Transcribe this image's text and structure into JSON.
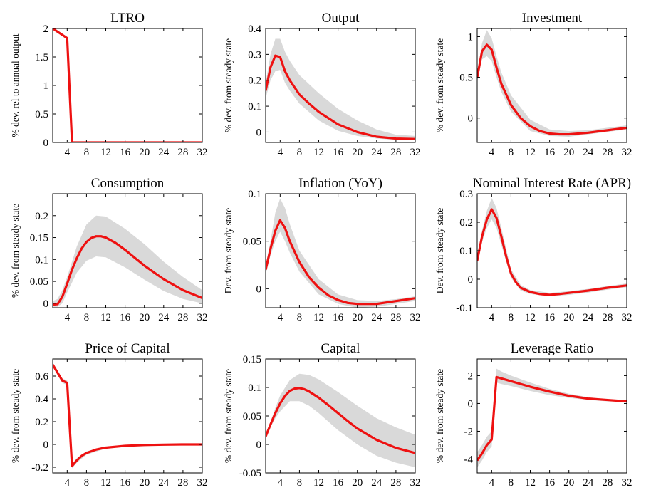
{
  "colors": {
    "line": "#ee1111",
    "band": "#d9d9d9",
    "axes": "#000000",
    "background": "#ffffff"
  },
  "chart_data": [
    {
      "type": "line",
      "title": "LTRO",
      "ylabel": "% dev. rel to annual output",
      "xlim": [
        1,
        32
      ],
      "ylim": [
        0,
        2
      ],
      "xticks": [
        4,
        8,
        12,
        16,
        20,
        24,
        28,
        32
      ],
      "yticks": [
        0,
        0.5,
        1,
        1.5,
        2
      ],
      "ytick_labels": [
        "0",
        "0.5",
        "1",
        "1.5",
        "2"
      ],
      "x": [
        1,
        4,
        5,
        32
      ],
      "y": [
        2.0,
        1.83,
        0,
        0
      ],
      "band": null
    },
    {
      "type": "line",
      "title": "Output",
      "ylabel": "% dev. from steady state",
      "xlim": [
        1,
        32
      ],
      "ylim": [
        -0.04,
        0.4
      ],
      "xticks": [
        4,
        8,
        12,
        16,
        20,
        24,
        28,
        32
      ],
      "yticks": [
        0,
        0.1,
        0.2,
        0.3,
        0.4
      ],
      "ytick_labels": [
        "0",
        "0.1",
        "0.2",
        "0.3",
        "0.4"
      ],
      "x": [
        1,
        2,
        3,
        4,
        5,
        6,
        8,
        10,
        12,
        16,
        20,
        24,
        28,
        32
      ],
      "y": [
        0.16,
        0.25,
        0.295,
        0.29,
        0.235,
        0.2,
        0.145,
        0.11,
        0.078,
        0.03,
        0.0,
        -0.018,
        -0.025,
        -0.027
      ],
      "band": {
        "x": [
          1,
          2,
          3,
          4,
          5,
          6,
          8,
          12,
          16,
          20,
          24,
          28,
          32
        ],
        "upper": [
          0.19,
          0.3,
          0.36,
          0.36,
          0.31,
          0.275,
          0.22,
          0.15,
          0.09,
          0.045,
          0.01,
          -0.01,
          -0.015
        ],
        "lower": [
          0.13,
          0.2,
          0.235,
          0.24,
          0.19,
          0.16,
          0.11,
          0.045,
          0.005,
          -0.015,
          -0.025,
          -0.03,
          -0.03
        ]
      }
    },
    {
      "type": "line",
      "title": "Investment",
      "ylabel": "% dev. from steady state",
      "xlim": [
        1,
        32
      ],
      "ylim": [
        -0.3,
        1.1
      ],
      "xticks": [
        4,
        8,
        12,
        16,
        20,
        24,
        28,
        32
      ],
      "yticks": [
        0,
        0.5,
        1
      ],
      "ytick_labels": [
        "0",
        "0.5",
        "1"
      ],
      "x": [
        1,
        2,
        3,
        4,
        5,
        6,
        8,
        10,
        12,
        14,
        16,
        18,
        20,
        24,
        28,
        32
      ],
      "y": [
        0.5,
        0.82,
        0.9,
        0.84,
        0.62,
        0.42,
        0.16,
        0.0,
        -0.1,
        -0.16,
        -0.19,
        -0.2,
        -0.2,
        -0.18,
        -0.15,
        -0.12
      ],
      "band": {
        "x": [
          1,
          2,
          3,
          4,
          5,
          6,
          8,
          12,
          16,
          20,
          24,
          28,
          32
        ],
        "upper": [
          0.55,
          0.92,
          1.08,
          0.98,
          0.76,
          0.56,
          0.28,
          -0.02,
          -0.14,
          -0.16,
          -0.15,
          -0.12,
          -0.09
        ],
        "lower": [
          0.45,
          0.72,
          0.76,
          0.7,
          0.5,
          0.32,
          0.08,
          -0.16,
          -0.22,
          -0.23,
          -0.2,
          -0.17,
          -0.14
        ]
      }
    },
    {
      "type": "line",
      "title": "Consumption",
      "ylabel": "% dev. from steady state",
      "xlim": [
        1,
        32
      ],
      "ylim": [
        -0.01,
        0.25
      ],
      "xticks": [
        4,
        8,
        12,
        16,
        20,
        24,
        28,
        32
      ],
      "yticks": [
        0,
        0.05,
        0.1,
        0.15,
        0.2
      ],
      "ytick_labels": [
        "0",
        "0.05",
        "0.1",
        "0.15",
        "0.2"
      ],
      "x": [
        1,
        2,
        3,
        4,
        5,
        6,
        7,
        8,
        9,
        10,
        11,
        12,
        14,
        16,
        18,
        20,
        24,
        28,
        32
      ],
      "y": [
        -0.003,
        -0.002,
        0.015,
        0.045,
        0.077,
        0.103,
        0.125,
        0.14,
        0.149,
        0.153,
        0.153,
        0.15,
        0.138,
        0.122,
        0.104,
        0.086,
        0.055,
        0.03,
        0.012
      ],
      "band": {
        "x": [
          1,
          2,
          3,
          4,
          6,
          8,
          10,
          12,
          16,
          20,
          24,
          28,
          32
        ],
        "upper": [
          0.005,
          0.01,
          0.03,
          0.06,
          0.13,
          0.18,
          0.2,
          0.198,
          0.17,
          0.135,
          0.095,
          0.06,
          0.03
        ],
        "lower": [
          -0.008,
          -0.008,
          0.0,
          0.025,
          0.07,
          0.097,
          0.107,
          0.105,
          0.082,
          0.054,
          0.028,
          0.01,
          0.0
        ]
      }
    },
    {
      "type": "line",
      "title": "Inflation (YoY)",
      "ylabel": "Dev. from steady state",
      "xlim": [
        1,
        32
      ],
      "ylim": [
        -0.02,
        0.1
      ],
      "xticks": [
        4,
        8,
        12,
        16,
        20,
        24,
        28,
        32
      ],
      "yticks": [
        0,
        0.05,
        0.1
      ],
      "ytick_labels": [
        "0",
        "0.05",
        "0.1"
      ],
      "x": [
        1,
        2,
        3,
        4,
        5,
        6,
        8,
        10,
        12,
        14,
        16,
        18,
        20,
        24,
        28,
        32
      ],
      "y": [
        0.02,
        0.042,
        0.061,
        0.072,
        0.064,
        0.05,
        0.028,
        0.012,
        0.001,
        -0.007,
        -0.012,
        -0.015,
        -0.016,
        -0.016,
        -0.013,
        -0.01
      ],
      "band": {
        "x": [
          1,
          2,
          3,
          4,
          5,
          6,
          8,
          12,
          16,
          20,
          24,
          28,
          32
        ],
        "upper": [
          0.025,
          0.05,
          0.08,
          0.095,
          0.085,
          0.068,
          0.04,
          0.01,
          -0.006,
          -0.012,
          -0.013,
          -0.011,
          -0.008
        ],
        "lower": [
          0.015,
          0.035,
          0.05,
          0.06,
          0.05,
          0.038,
          0.018,
          -0.006,
          -0.016,
          -0.02,
          -0.019,
          -0.016,
          -0.013
        ]
      }
    },
    {
      "type": "line",
      "title": "Nominal Interest Rate (APR)",
      "ylabel": "Dev. from steady state",
      "xlim": [
        1,
        32
      ],
      "ylim": [
        -0.1,
        0.3
      ],
      "xticks": [
        4,
        8,
        12,
        16,
        20,
        24,
        28,
        32
      ],
      "yticks": [
        -0.1,
        0,
        0.1,
        0.2,
        0.3
      ],
      "ytick_labels": [
        "-0.1",
        "0",
        "0.1",
        "0.2",
        "0.3"
      ],
      "x": [
        1,
        2,
        3,
        4,
        5,
        6,
        7,
        8,
        9,
        10,
        12,
        14,
        16,
        18,
        20,
        24,
        28,
        32
      ],
      "y": [
        0.065,
        0.15,
        0.21,
        0.245,
        0.215,
        0.15,
        0.08,
        0.02,
        -0.01,
        -0.03,
        -0.045,
        -0.052,
        -0.055,
        -0.052,
        -0.048,
        -0.04,
        -0.03,
        -0.022
      ],
      "band": {
        "x": [
          1,
          2,
          3,
          4,
          5,
          6,
          8,
          10,
          12,
          16,
          20,
          24,
          28,
          32
        ],
        "upper": [
          0.075,
          0.17,
          0.24,
          0.285,
          0.25,
          0.18,
          0.035,
          -0.02,
          -0.038,
          -0.048,
          -0.042,
          -0.034,
          -0.024,
          -0.015
        ],
        "lower": [
          0.055,
          0.13,
          0.18,
          0.21,
          0.18,
          0.12,
          0.005,
          -0.04,
          -0.052,
          -0.06,
          -0.055,
          -0.047,
          -0.037,
          -0.028
        ]
      }
    },
    {
      "type": "line",
      "title": "Price of Capital",
      "ylabel": "% dev. from steady state",
      "xlim": [
        1,
        32
      ],
      "ylim": [
        -0.25,
        0.75
      ],
      "xticks": [
        4,
        8,
        12,
        16,
        20,
        24,
        28,
        32
      ],
      "yticks": [
        -0.2,
        0,
        0.2,
        0.4,
        0.6
      ],
      "ytick_labels": [
        "-0.2",
        "0",
        "0.2",
        "0.4",
        "0.6"
      ],
      "x": [
        1,
        2,
        3,
        4,
        5,
        6,
        7,
        8,
        10,
        12,
        16,
        20,
        24,
        28,
        32
      ],
      "y": [
        0.7,
        0.63,
        0.56,
        0.54,
        -0.19,
        -0.14,
        -0.1,
        -0.075,
        -0.045,
        -0.028,
        -0.012,
        -0.005,
        -0.002,
        0.0,
        0.0
      ],
      "band": {
        "x": [
          1,
          2,
          3,
          4,
          5,
          6,
          8,
          12,
          16,
          32
        ],
        "upper": [
          0.72,
          0.65,
          0.58,
          0.56,
          -0.17,
          -0.12,
          -0.06,
          -0.02,
          -0.005,
          0.002
        ],
        "lower": [
          0.68,
          0.61,
          0.54,
          0.52,
          -0.21,
          -0.16,
          -0.09,
          -0.036,
          -0.018,
          -0.002
        ]
      }
    },
    {
      "type": "line",
      "title": "Capital",
      "ylabel": "% dev. from steady state",
      "xlim": [
        1,
        32
      ],
      "ylim": [
        -0.05,
        0.15
      ],
      "xticks": [
        4,
        8,
        12,
        16,
        20,
        24,
        28,
        32
      ],
      "yticks": [
        -0.05,
        0,
        0.05,
        0.1,
        0.15
      ],
      "ytick_labels": [
        "-0.05",
        "0",
        "0.05",
        "0.1",
        "0.15"
      ],
      "x": [
        1,
        2,
        3,
        4,
        5,
        6,
        7,
        8,
        9,
        10,
        12,
        14,
        16,
        18,
        20,
        24,
        28,
        32
      ],
      "y": [
        0.014,
        0.035,
        0.055,
        0.072,
        0.085,
        0.094,
        0.098,
        0.099,
        0.097,
        0.093,
        0.082,
        0.069,
        0.055,
        0.041,
        0.028,
        0.008,
        -0.006,
        -0.015
      ],
      "band": {
        "x": [
          1,
          2,
          3,
          4,
          6,
          8,
          10,
          12,
          16,
          20,
          24,
          28,
          32
        ],
        "upper": [
          0.016,
          0.04,
          0.064,
          0.086,
          0.113,
          0.124,
          0.122,
          0.114,
          0.092,
          0.068,
          0.046,
          0.03,
          0.017
        ],
        "lower": [
          0.012,
          0.03,
          0.046,
          0.058,
          0.076,
          0.076,
          0.068,
          0.055,
          0.025,
          0.0,
          -0.02,
          -0.032,
          -0.04
        ]
      }
    },
    {
      "type": "line",
      "title": "Leverage Ratio",
      "ylabel": "% dev. from steady state",
      "xlim": [
        1,
        32
      ],
      "ylim": [
        -5,
        3.2
      ],
      "xticks": [
        4,
        8,
        12,
        16,
        20,
        24,
        28,
        32
      ],
      "yticks": [
        -4,
        -2,
        0,
        2
      ],
      "ytick_labels": [
        "-4",
        "-2",
        "0",
        "2"
      ],
      "x": [
        1,
        2,
        3,
        4,
        5,
        6,
        8,
        10,
        12,
        16,
        20,
        24,
        28,
        32
      ],
      "y": [
        -4.1,
        -3.6,
        -3.0,
        -2.6,
        1.9,
        1.8,
        1.6,
        1.4,
        1.2,
        0.85,
        0.55,
        0.35,
        0.25,
        0.15
      ],
      "band": {
        "x": [
          1,
          2,
          3,
          4,
          5,
          6,
          8,
          12,
          16,
          20,
          24,
          28,
          32
        ],
        "upper": [
          -3.5,
          -3.0,
          -2.4,
          -2.0,
          2.5,
          2.3,
          2.0,
          1.5,
          1.05,
          0.7,
          0.45,
          0.3,
          0.2
        ],
        "lower": [
          -4.6,
          -4.1,
          -3.5,
          -3.1,
          1.5,
          1.4,
          1.25,
          0.9,
          0.6,
          0.4,
          0.25,
          0.15,
          0.1
        ]
      }
    }
  ]
}
